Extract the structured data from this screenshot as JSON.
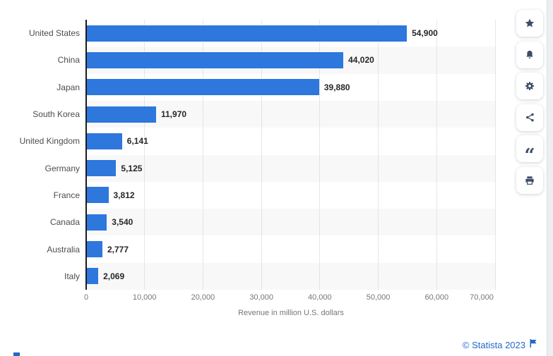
{
  "chart_data": {
    "type": "bar",
    "orientation": "horizontal",
    "categories": [
      "United States",
      "China",
      "Japan",
      "South Korea",
      "United Kingdom",
      "Germany",
      "France",
      "Canada",
      "Australia",
      "Italy"
    ],
    "values": [
      54900,
      44020,
      39880,
      11970,
      6141,
      5125,
      3812,
      3540,
      2777,
      2069
    ],
    "value_labels": [
      "54,900",
      "44,020",
      "39,880",
      "11,970",
      "6,141",
      "5,125",
      "3,812",
      "3,540",
      "2,777",
      "2,069"
    ],
    "title": "",
    "xlabel": "Revenue in million U.S. dollars",
    "ylabel": "",
    "x_ticks": [
      "0",
      "10,000",
      "20,000",
      "30,000",
      "40,000",
      "50,000",
      "60,000",
      "70,000"
    ],
    "xlim": [
      0,
      70000
    ],
    "grid": "vertical-dotted",
    "legend": "none",
    "bar_color": "#2d77dd",
    "row_alt_color": "#f8f8f8"
  },
  "toolbar": {
    "buttons": [
      {
        "label": "favorite",
        "icon": "star-icon"
      },
      {
        "label": "alert",
        "icon": "bell-icon"
      },
      {
        "label": "settings",
        "icon": "gear-icon"
      },
      {
        "label": "share",
        "icon": "share-icon"
      },
      {
        "label": "cite",
        "icon": "quote-icon"
      },
      {
        "label": "print",
        "icon": "printer-icon"
      }
    ]
  },
  "footer": {
    "copyright": "© Statista 2023"
  },
  "colors": {
    "bar": "#2d77dd",
    "axis": "#1b1b1b",
    "gridline": "#cfcfcf",
    "tick_text": "#767676",
    "category_text": "#4d4d4d",
    "value_text": "#262626",
    "icon": "#3d4d69",
    "link_blue": "#2368c4",
    "row_alt": "#f8f8f8",
    "page_strip": "#eceef1"
  }
}
